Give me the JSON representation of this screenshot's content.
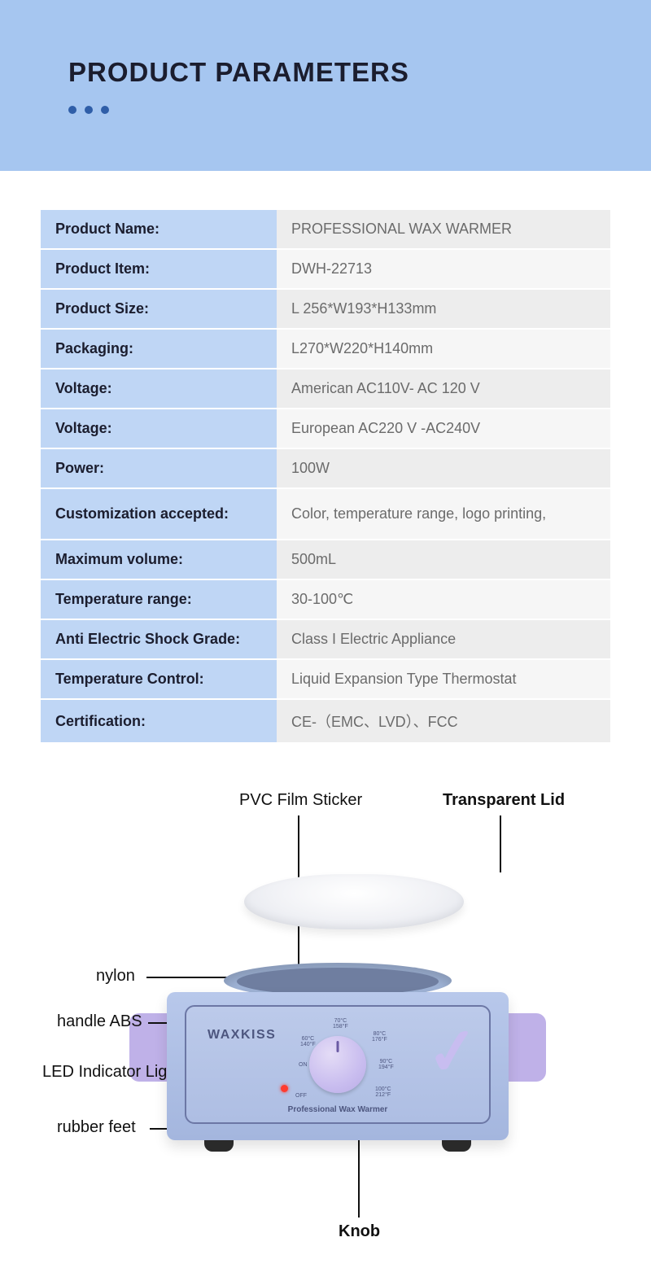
{
  "header": {
    "title": "PRODUCT PARAMETERS"
  },
  "specs": [
    {
      "label": "Product Name:",
      "value": "PROFESSIONAL WAX WARMER"
    },
    {
      "label": "Product Item:",
      "value": "DWH-22713"
    },
    {
      "label": "Product Size:",
      "value": "L 256*W193*H133mm"
    },
    {
      "label": "Packaging:",
      "value": "L270*W220*H140mm"
    },
    {
      "label": "Voltage:",
      "value": "American AC110V- AC 120 V"
    },
    {
      "label": "Voltage:",
      "value": "European AC220 V -AC240V"
    },
    {
      "label": "Power:",
      "value": "100W"
    },
    {
      "label": "Customization accepted:",
      "value": "Color, temperature range, logo printing,"
    },
    {
      "label": "Maximum volume:",
      "value": "500mL"
    },
    {
      "label": "Temperature range:",
      "value": "30-100℃"
    },
    {
      "label": "Anti Electric Shock Grade:",
      "value": "Class I Electric Appliance"
    },
    {
      "label": "Temperature Control:",
      "value": "Liquid Expansion Type Thermostat"
    },
    {
      "label": "Certification:",
      "value": "CE-（EMC、LVD）、FCC"
    }
  ],
  "diagram": {
    "pvc": "PVC Film Sticker",
    "lid": "Transparent Lid",
    "nylon": "nylon",
    "handle": "handle ABS",
    "led": "LED Indicator Light",
    "feet": "rubber feet",
    "knob": "Knob"
  },
  "device": {
    "brand": "WAXKISS",
    "sub": "Professional Wax Warmer",
    "on": "ON",
    "off": "OFF",
    "ticks": {
      "t1": "60°C\n140°F",
      "t2": "70°C\n158°F",
      "t3": "80°C\n176°F",
      "t4": "90°C\n194°F",
      "t5": "100°C\n212°F"
    }
  },
  "colors": {
    "header_bg": "#a6c6f0",
    "label_bg": "#bfd6f5",
    "value_bg": "#ededed",
    "device_body": "#b0c2e6",
    "knob": "#c9bdef",
    "handle": "#bfb1e8"
  }
}
